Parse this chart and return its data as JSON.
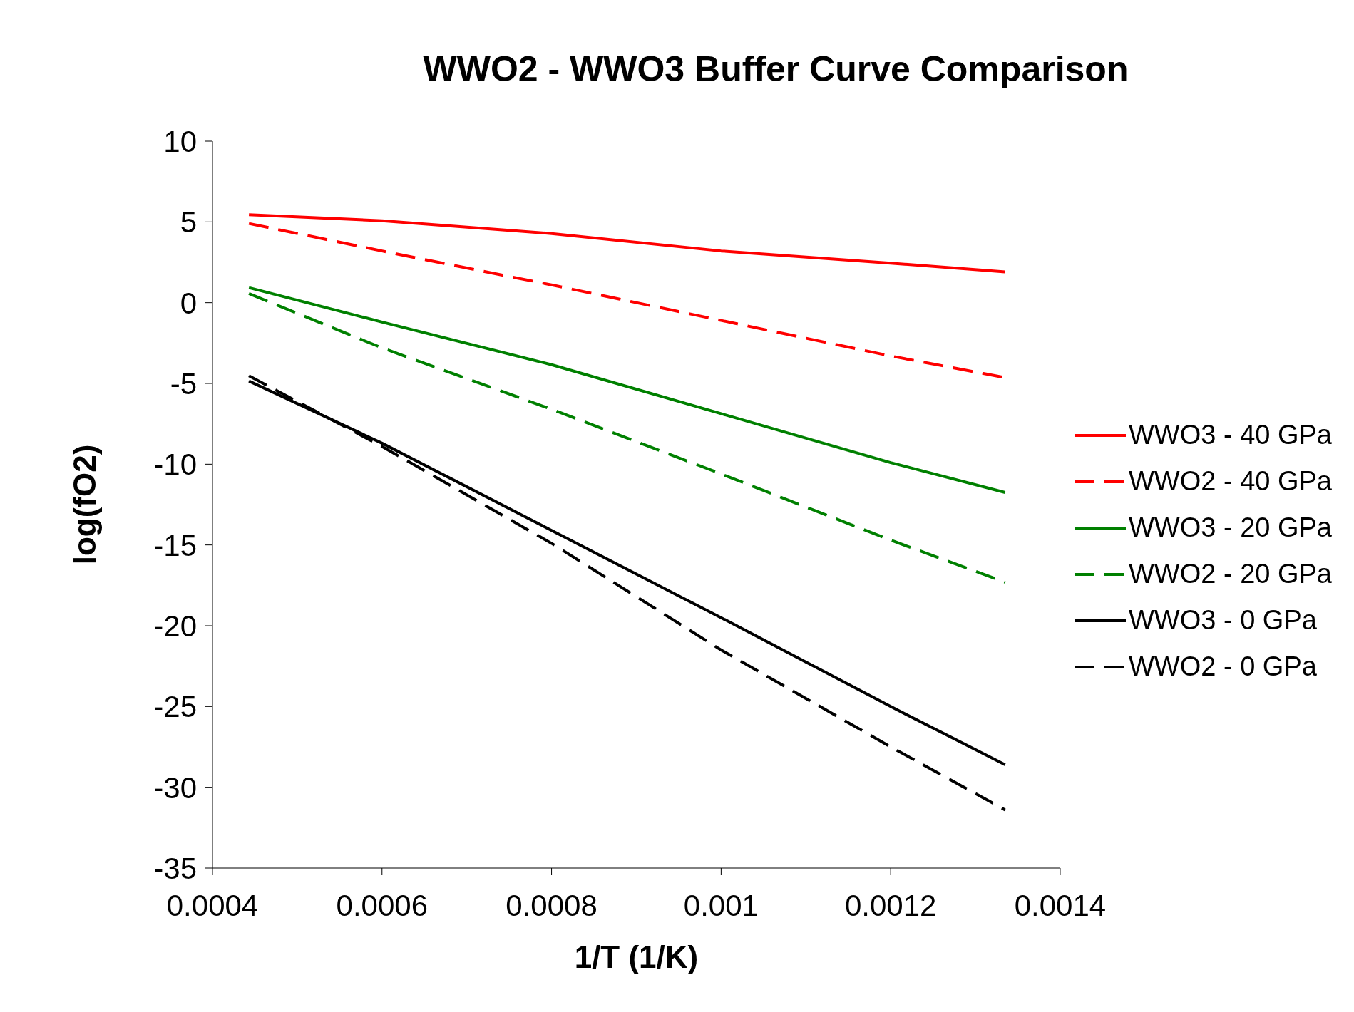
{
  "chart_data": {
    "type": "line",
    "title": "WWO2 - WWO3 Buffer Curve Comparison",
    "xlabel": "1/T (1/K)",
    "ylabel": "log(fO2)",
    "xlim": [
      0.0004,
      0.0014
    ],
    "xticks": [
      0.0004,
      0.0006,
      0.0008,
      0.001,
      0.0012,
      0.0014
    ],
    "ylim": [
      -35,
      10
    ],
    "yticks": [
      -35,
      -30,
      -25,
      -20,
      -15,
      -10,
      -5,
      0,
      5,
      10
    ],
    "legend": "right",
    "x": [
      0.000443,
      0.0006,
      0.0008,
      0.001,
      0.0012,
      0.001335
    ],
    "series": [
      {
        "name": "WWO3 - 40 GPa",
        "color": "#ff0000",
        "line_style": "solid",
        "values": [
          5.45,
          5.07,
          4.28,
          3.2,
          2.45,
          1.9
        ]
      },
      {
        "name": "WWO2 - 40 GPa",
        "color": "#ff0000",
        "line_style": "dashed",
        "values": [
          4.9,
          3.2,
          1.1,
          -1.1,
          -3.3,
          -4.64
        ]
      },
      {
        "name": "WWO3 - 20 GPa",
        "color": "#008000",
        "line_style": "solid",
        "values": [
          0.93,
          -1.2,
          -3.84,
          -6.87,
          -9.9,
          -11.75
        ]
      },
      {
        "name": "WWO2 - 20 GPa",
        "color": "#008000",
        "line_style": "dashed",
        "values": [
          0.56,
          -2.8,
          -6.6,
          -10.6,
          -14.7,
          -17.3
        ]
      },
      {
        "name": "WWO3 - 0 GPa",
        "color": "#000000",
        "line_style": "solid",
        "values": [
          -4.85,
          -8.7,
          -14.1,
          -19.5,
          -25.0,
          -28.6
        ]
      },
      {
        "name": "WWO2 - 0 GPa",
        "color": "#000000",
        "line_style": "dashed",
        "values": [
          -4.53,
          -8.9,
          -14.9,
          -21.5,
          -27.5,
          -31.4
        ]
      }
    ]
  }
}
